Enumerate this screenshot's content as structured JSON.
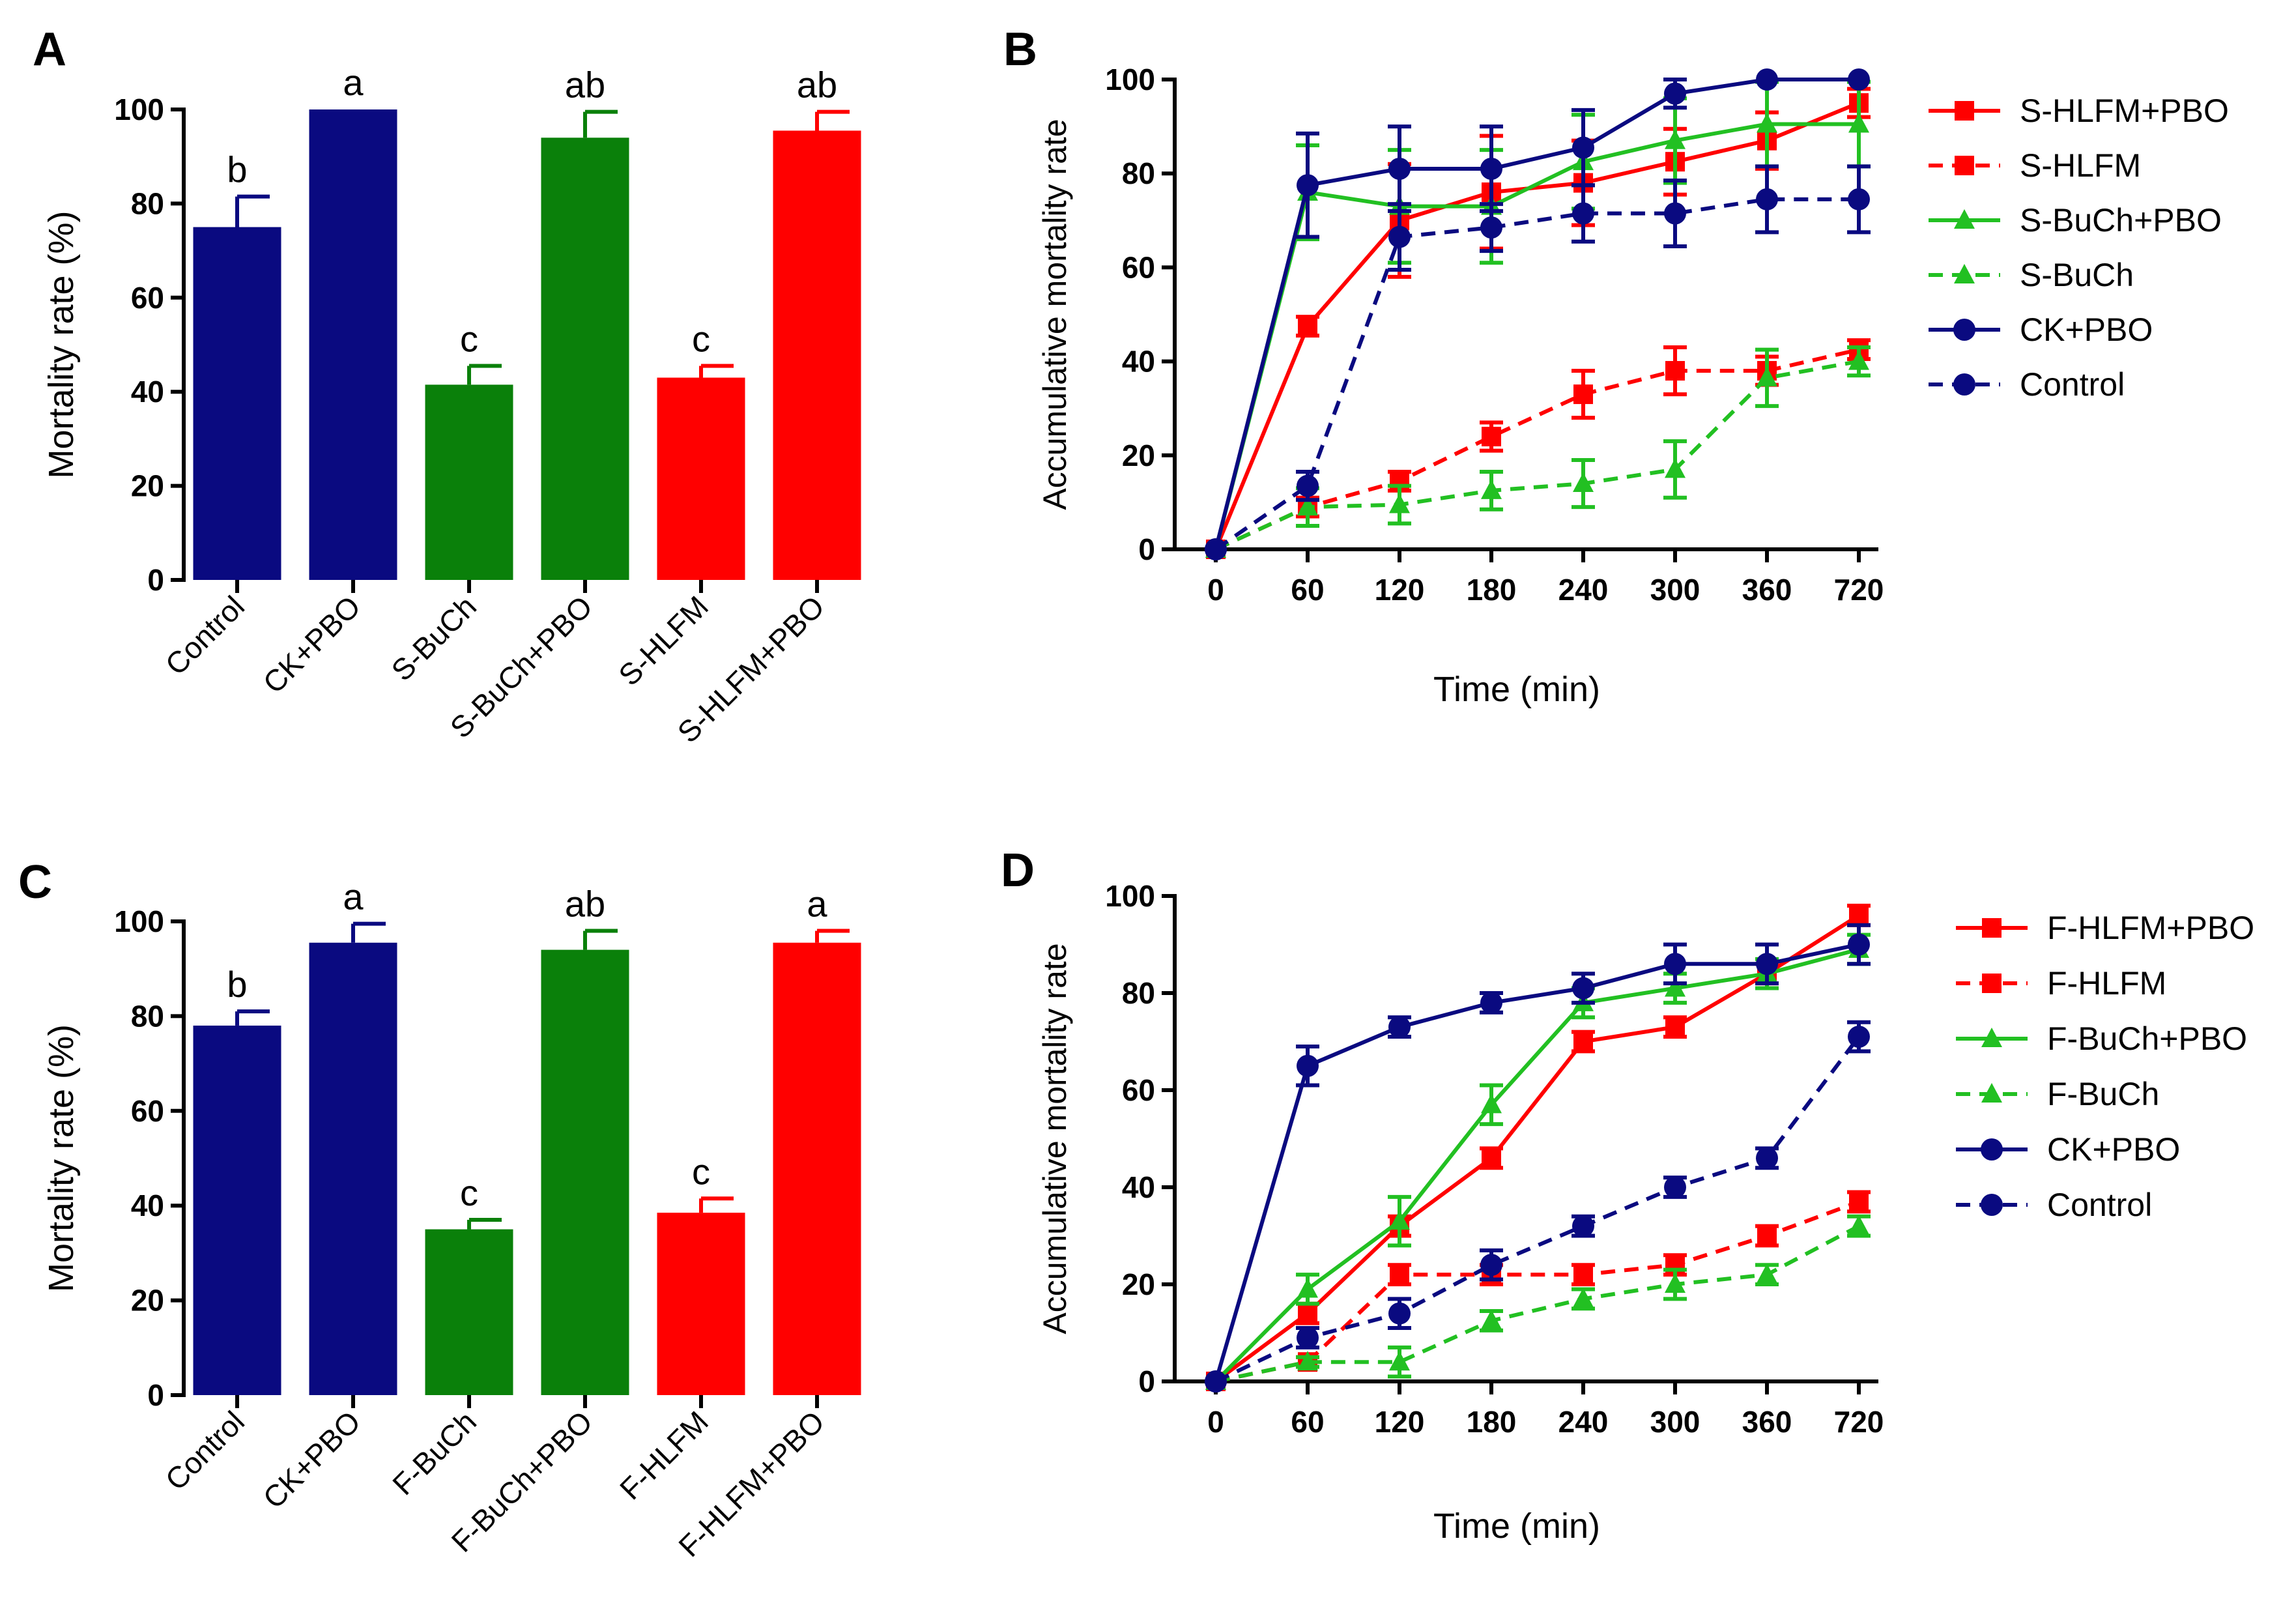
{
  "colors": {
    "navy": "#0a0a80",
    "green": "#0a800a",
    "red": "#ff0000",
    "lime": "#22c022"
  },
  "chart_data": [
    {
      "type": "bar",
      "panel": "A",
      "ylabel": "Mortality rate (%)",
      "ylim": [
        0,
        100
      ],
      "yticks": [
        "0",
        "20",
        "40",
        "60",
        "80",
        "100"
      ],
      "categories": [
        "Control",
        "CK+PBO",
        "S-BuCh",
        "S-BuCh+PBO",
        "S-HLFM",
        "S-HLFM+PBO"
      ],
      "values": [
        75,
        100,
        41.5,
        94,
        43,
        95.5
      ],
      "errors": [
        6.5,
        0,
        4,
        5.5,
        2.5,
        4
      ],
      "letters": [
        "b",
        "a",
        "c",
        "ab",
        "c",
        "ab"
      ],
      "bar_colors": [
        "navy",
        "navy",
        "green",
        "green",
        "red",
        "red"
      ]
    },
    {
      "type": "line",
      "panel": "B",
      "xlabel": "Time (min)",
      "ylabel": "Accumulative mortality rate",
      "ylim": [
        0,
        100
      ],
      "yticks": [
        "0",
        "20",
        "40",
        "60",
        "80",
        "100"
      ],
      "x": [
        "0",
        "60",
        "120",
        "180",
        "240",
        "300",
        "360",
        "720"
      ],
      "series": [
        {
          "name": "S-HLFM+PBO",
          "color": "red",
          "dash": false,
          "marker": "square",
          "values": [
            0,
            47.5,
            70,
            76,
            78,
            82.5,
            87,
            95
          ],
          "errors": [
            0,
            2,
            12,
            12,
            9,
            7,
            6,
            3
          ]
        },
        {
          "name": "S-HLFM",
          "color": "red",
          "dash": true,
          "marker": "square",
          "values": [
            0,
            9,
            14.5,
            24,
            33,
            38,
            38,
            42.5
          ],
          "errors": [
            0,
            2,
            2,
            3,
            5,
            5,
            3,
            2
          ]
        },
        {
          "name": "S-BuCh+PBO",
          "color": "lime",
          "dash": false,
          "marker": "triangle",
          "values": [
            0,
            76,
            73,
            73,
            82.5,
            87,
            90.5,
            90.5
          ],
          "errors": [
            0,
            10,
            12,
            12,
            10,
            9,
            9,
            9
          ]
        },
        {
          "name": "S-BuCh",
          "color": "lime",
          "dash": true,
          "marker": "triangle",
          "values": [
            0,
            9,
            9.5,
            12.5,
            14,
            17,
            36.5,
            40
          ],
          "errors": [
            0,
            4,
            4,
            4,
            5,
            6,
            6,
            3
          ]
        },
        {
          "name": "CK+PBO",
          "color": "navy",
          "dash": false,
          "marker": "circle",
          "values": [
            0,
            77.5,
            81,
            81,
            85.5,
            97,
            100,
            100
          ],
          "errors": [
            0,
            11,
            9,
            9,
            8,
            3,
            0,
            0
          ]
        },
        {
          "name": "Control",
          "color": "navy",
          "dash": true,
          "marker": "circle",
          "values": [
            0,
            13.5,
            66.5,
            68.5,
            71.5,
            71.5,
            74.5,
            74.5
          ],
          "errors": [
            0,
            3,
            7,
            5,
            6,
            7,
            7,
            7
          ]
        }
      ]
    },
    {
      "type": "bar",
      "panel": "C",
      "ylabel": "Mortality rate (%)",
      "ylim": [
        0,
        100
      ],
      "yticks": [
        "0",
        "20",
        "40",
        "60",
        "80",
        "100"
      ],
      "categories": [
        "Control",
        "CK+PBO",
        "F-BuCh",
        "F-BuCh+PBO",
        "F-HLFM",
        "F-HLFM+PBO"
      ],
      "values": [
        78,
        95.5,
        35,
        94,
        38.5,
        95.5
      ],
      "errors": [
        3,
        4,
        2,
        4,
        3,
        2.5
      ],
      "letters": [
        "b",
        "a",
        "c",
        "ab",
        "c",
        "a"
      ],
      "bar_colors": [
        "navy",
        "navy",
        "green",
        "green",
        "red",
        "red"
      ]
    },
    {
      "type": "line",
      "panel": "D",
      "xlabel": "Time (min)",
      "ylabel": "Accumulative mortality rate",
      "ylim": [
        0,
        100
      ],
      "yticks": [
        "0",
        "20",
        "40",
        "60",
        "80",
        "100"
      ],
      "x": [
        "0",
        "60",
        "120",
        "180",
        "240",
        "300",
        "360",
        "720"
      ],
      "series": [
        {
          "name": "F-HLFM+PBO",
          "color": "red",
          "dash": false,
          "marker": "square",
          "values": [
            0,
            14,
            32,
            46,
            70,
            73,
            84,
            96
          ],
          "errors": [
            0,
            2,
            2,
            2,
            2,
            2,
            2,
            2
          ]
        },
        {
          "name": "F-HLFM",
          "color": "red",
          "dash": true,
          "marker": "square",
          "values": [
            0,
            4,
            22,
            22,
            22,
            24,
            30,
            37
          ],
          "errors": [
            0,
            1,
            2,
            2,
            2,
            2,
            2,
            2
          ]
        },
        {
          "name": "F-BuCh+PBO",
          "color": "lime",
          "dash": false,
          "marker": "triangle",
          "values": [
            0,
            19,
            33,
            57,
            78,
            81,
            84,
            89
          ],
          "errors": [
            0,
            3,
            5,
            4,
            3,
            3,
            3,
            3
          ]
        },
        {
          "name": "F-BuCh",
          "color": "lime",
          "dash": true,
          "marker": "triangle",
          "values": [
            0,
            4,
            4,
            12.5,
            17,
            20,
            22,
            32
          ],
          "errors": [
            0,
            1,
            3,
            2,
            2,
            3,
            2,
            2
          ]
        },
        {
          "name": "CK+PBO",
          "color": "navy",
          "dash": false,
          "marker": "circle",
          "values": [
            0,
            65,
            73,
            78,
            81,
            86,
            86,
            90
          ],
          "errors": [
            0,
            4,
            2,
            2,
            3,
            4,
            4,
            4
          ]
        },
        {
          "name": "Control",
          "color": "navy",
          "dash": true,
          "marker": "circle",
          "values": [
            0,
            9,
            14,
            24,
            32,
            40,
            46,
            71
          ],
          "errors": [
            0,
            2,
            3,
            3,
            2,
            2,
            2,
            3
          ]
        }
      ]
    }
  ]
}
